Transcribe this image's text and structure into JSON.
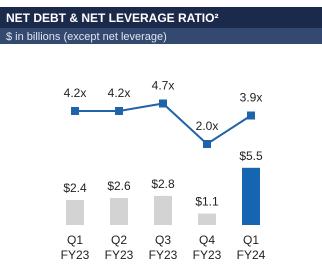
{
  "chart_data": {
    "type": "bar-line",
    "title": "NET DEBT & NET LEVERAGE RATIO²",
    "subtitle": "$ in billions (except net leverage)",
    "categories": [
      "Q1 FY23",
      "Q2 FY23",
      "Q3 FY23",
      "Q4 FY23",
      "Q1 FY24"
    ],
    "series": [
      {
        "type": "bar",
        "values": [
          2.4,
          2.6,
          2.8,
          1.1,
          5.5
        ],
        "value_labels": [
          "$2.4",
          "$2.6",
          "$2.8",
          "$1.1",
          "$5.5"
        ],
        "colors": [
          "#d3d3d3",
          "#d3d3d3",
          "#d3d3d3",
          "#d3d3d3",
          "#1565b0"
        ]
      },
      {
        "type": "line",
        "values": [
          4.2,
          4.2,
          4.7,
          2.0,
          3.9
        ],
        "value_labels": [
          "4.2x",
          "4.2x",
          "4.7x",
          "2.0x",
          "3.9x"
        ],
        "color": "#1f63a8"
      }
    ]
  }
}
